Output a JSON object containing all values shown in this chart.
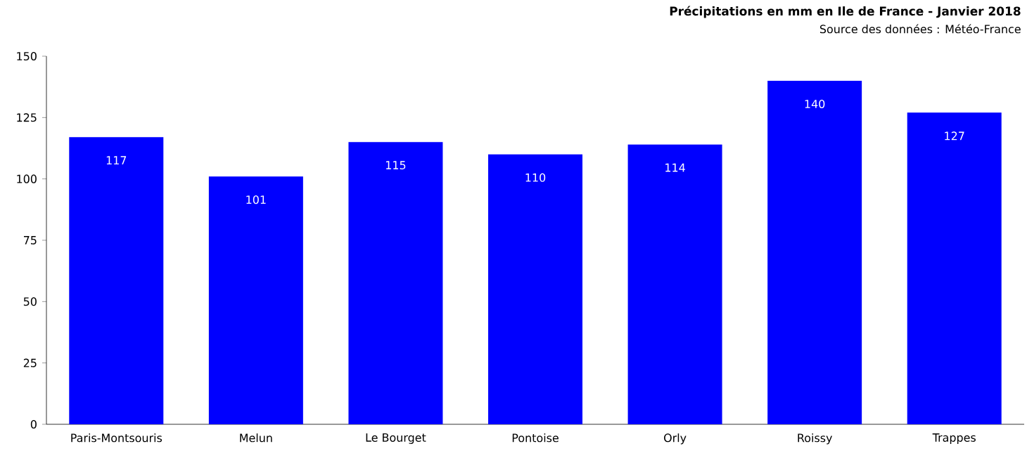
{
  "chart_data": {
    "type": "bar",
    "title": "Précipitations en mm en Ile de France - Janvier 2018",
    "subtitle": "Source des données : Météo-France",
    "categories": [
      "Paris-Montsouris",
      "Melun",
      "Le Bourget",
      "Pontoise",
      "Orly",
      "Roissy",
      "Trappes"
    ],
    "values": [
      117,
      101,
      115,
      110,
      114,
      140,
      127
    ],
    "color": "#0000ff",
    "ylim": [
      0,
      150
    ],
    "yticks": [
      0,
      25,
      50,
      75,
      100,
      125,
      150
    ],
    "data_labels": true
  }
}
